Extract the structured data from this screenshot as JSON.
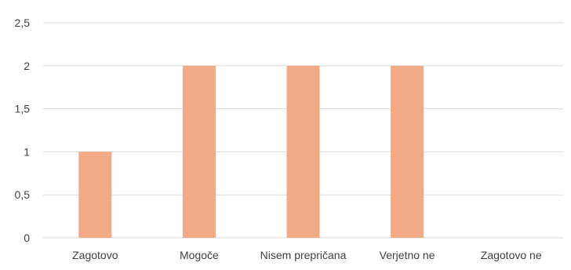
{
  "chart_data": {
    "type": "bar",
    "categories": [
      "Zagotovo",
      "Mogoče",
      "Nisem prepričana",
      "Verjetno ne",
      "Zagotovo ne"
    ],
    "values": [
      1,
      2,
      2,
      2,
      0
    ],
    "ylim": [
      0,
      2.5
    ],
    "yticks": [
      "0",
      "0,5",
      "1",
      "1,5",
      "2",
      "2,5"
    ],
    "grid": true,
    "bar_color": "#F2A985",
    "grid_color": "#D9D9D9",
    "text_color": "#404040"
  }
}
